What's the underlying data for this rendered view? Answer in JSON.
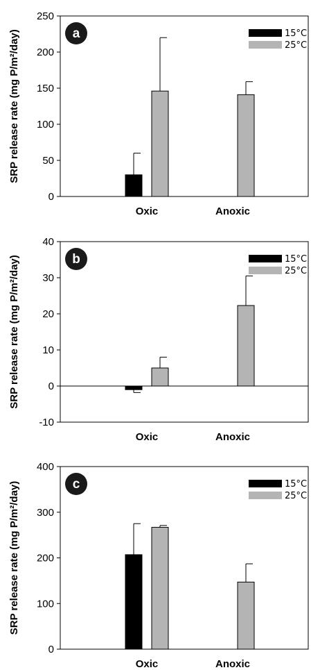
{
  "chart_data": [
    {
      "type": "bar",
      "panel_label": "a",
      "ylabel": "SRP release rate (mg P/m²/day)",
      "categories": [
        "Oxic",
        "Anoxic"
      ],
      "ylim": [
        0,
        250
      ],
      "yticks": [
        0,
        50,
        100,
        150,
        200,
        250
      ],
      "series": [
        {
          "name": "15°C",
          "color": "#000000",
          "values": [
            30,
            null
          ],
          "errors": [
            30,
            null
          ]
        },
        {
          "name": "25°C",
          "color": "#b4b4b4",
          "values": [
            146,
            141
          ],
          "errors": [
            74,
            18
          ]
        }
      ],
      "legend_position": "top-right"
    },
    {
      "type": "bar",
      "panel_label": "b",
      "ylabel": "SRP release rate (mg P/m²/day)",
      "categories": [
        "Oxic",
        "Anoxic"
      ],
      "ylim": [
        -10,
        40
      ],
      "yticks": [
        -10,
        0,
        10,
        20,
        30,
        40
      ],
      "series": [
        {
          "name": "15°C",
          "color": "#000000",
          "values": [
            -1,
            null
          ],
          "errors": [
            0.8,
            null
          ]
        },
        {
          "name": "25°C",
          "color": "#b4b4b4",
          "values": [
            5,
            22.3
          ],
          "errors": [
            3,
            8.2
          ]
        }
      ],
      "legend_position": "top-right"
    },
    {
      "type": "bar",
      "panel_label": "c",
      "ylabel": "SRP release rate (mg P/m²/day)",
      "categories": [
        "Oxic",
        "Anoxic"
      ],
      "ylim": [
        0,
        400
      ],
      "yticks": [
        0,
        100,
        200,
        300,
        400
      ],
      "series": [
        {
          "name": "15°C",
          "color": "#000000",
          "values": [
            207,
            null
          ],
          "errors": [
            68,
            null
          ]
        },
        {
          "name": "25°C",
          "color": "#b4b4b4",
          "values": [
            267,
            147
          ],
          "errors": [
            4,
            40
          ]
        }
      ],
      "legend_position": "top-right"
    }
  ]
}
